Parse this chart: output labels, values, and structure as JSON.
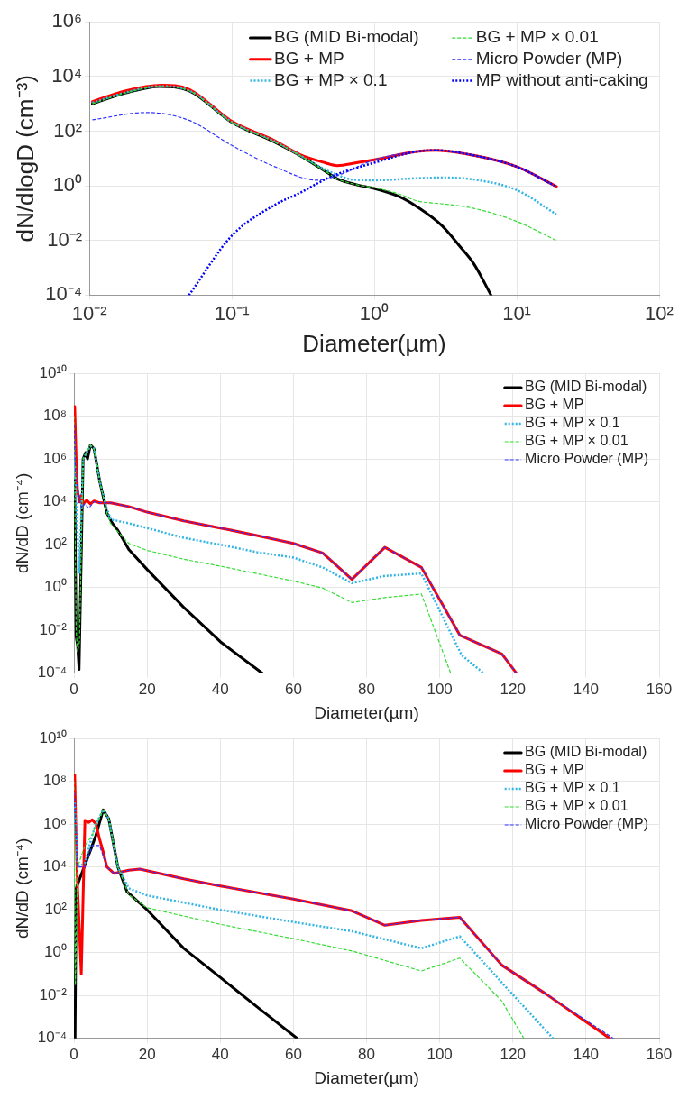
{
  "chart_data": [
    {
      "type": "line",
      "xlabel": "Diameter(µm)",
      "ylabel": "dN/dlogD (cm⁻³)",
      "log": "xy",
      "grid": true,
      "legend": "top right",
      "xlim": [
        0.01,
        100
      ],
      "xticks": [
        {
          "value": 0.01,
          "label": "10⁻²"
        },
        {
          "value": 0.1,
          "label": "10⁻¹"
        },
        {
          "value": 1,
          "label": "10⁰"
        },
        {
          "value": 10,
          "label": "10¹"
        },
        {
          "value": 100,
          "label": "10²"
        }
      ],
      "ylim": [
        0.0001,
        1000000
      ],
      "yticks": [
        {
          "value": 0.0001,
          "label": "10⁻⁴"
        },
        {
          "value": 0.01,
          "label": "10⁻²"
        },
        {
          "value": 1,
          "label": "10⁰"
        },
        {
          "value": 100,
          "label": "10²"
        },
        {
          "value": 10000,
          "label": "10⁴"
        },
        {
          "value": 1000000,
          "label": "10⁶"
        }
      ],
      "series": [
        {
          "name": "BG (MID Bi-modal)",
          "color": "#000000",
          "line_style": "solid",
          "x": [
            0.0105,
            0.018,
            0.031,
            0.05,
            0.1,
            0.2,
            0.3,
            0.45,
            0.55,
            0.75,
            1,
            1.5,
            2,
            3,
            4,
            5,
            6.6
          ],
          "values": [
            1000,
            2500,
            4300,
            3000,
            210,
            40,
            13,
            3.5,
            1.8,
            1.1,
            0.8,
            0.4,
            0.17,
            0.034,
            0.006,
            0.0014,
            0.0001
          ]
        },
        {
          "name": "BG + MP",
          "color": "#ff0000",
          "line_style": "solid",
          "x": [
            0.0105,
            0.018,
            0.032,
            0.05,
            0.1,
            0.2,
            0.3,
            0.45,
            0.55,
            0.75,
            1,
            2,
            2.7,
            5,
            10,
            19
          ],
          "values": [
            1200,
            3000,
            4800,
            3400,
            230,
            45,
            14,
            7,
            5.5,
            7,
            9,
            18,
            20,
            13,
            5,
            0.95
          ]
        },
        {
          "name": "BG + MP × 0.1",
          "color": "#33b5e5",
          "line_style": "dotted",
          "x": [
            0.0105,
            0.018,
            0.031,
            0.05,
            0.1,
            0.2,
            0.3,
            0.45,
            0.55,
            0.7,
            1,
            2,
            3,
            5,
            10,
            19
          ],
          "values": [
            1100,
            2600,
            4400,
            3100,
            215,
            42,
            13,
            4,
            2.5,
            1.7,
            1.6,
            1.9,
            2,
            1.7,
            0.7,
            0.09
          ]
        },
        {
          "name": "BG + MP × 0.01",
          "color": "#33dd33",
          "line_style": "dashed",
          "x": [
            0.0105,
            0.018,
            0.031,
            0.05,
            0.1,
            0.2,
            0.3,
            0.45,
            0.55,
            0.75,
            1,
            1.5,
            2,
            3,
            5,
            10,
            19
          ],
          "values": [
            1000,
            2500,
            4300,
            3000,
            210,
            40,
            13,
            3.5,
            1.8,
            1.1,
            0.85,
            0.5,
            0.28,
            0.22,
            0.15,
            0.05,
            0.01
          ]
        },
        {
          "name": "Micro Powder (MP)",
          "color": "#3333ff",
          "line_style": "dashed",
          "x": [
            0.0105,
            0.025,
            0.05,
            0.1,
            0.2,
            0.4,
            0.6,
            1,
            2,
            2.7,
            5,
            10,
            19
          ],
          "values": [
            260,
            480,
            250,
            30,
            5,
            1.6,
            2.8,
            9,
            18,
            20,
            13,
            5,
            0.9
          ]
        },
        {
          "name": "MP without anti-caking",
          "color": "#0000ff",
          "line_style": "dotted",
          "x": [
            0.05,
            0.1,
            0.2,
            0.3,
            0.5,
            1,
            2,
            2.7,
            5,
            10,
            19
          ],
          "values": [
            0.0001,
            0.015,
            0.2,
            0.55,
            2.2,
            7,
            18,
            20,
            13,
            5,
            0.95
          ]
        }
      ]
    },
    {
      "type": "line",
      "xlabel": "Diameter(µm)",
      "ylabel": "dN/dD (cm⁻⁴)",
      "log": "y",
      "grid": true,
      "legend": "top right",
      "xlim": [
        0,
        160
      ],
      "xticks": [
        0,
        20,
        40,
        60,
        80,
        100,
        120,
        140,
        160
      ],
      "ylim": [
        0.0001,
        10000000000
      ],
      "yticks": [
        {
          "value": 0.0001,
          "label": "10⁻⁴"
        },
        {
          "value": 0.01,
          "label": "10⁻²"
        },
        {
          "value": 1,
          "label": "10⁰"
        },
        {
          "value": 100,
          "label": "10²"
        },
        {
          "value": 10000,
          "label": "10⁴"
        },
        {
          "value": 1000000,
          "label": "10⁶"
        },
        {
          "value": 100000000,
          "label": "10⁸"
        },
        {
          "value": 10000000000,
          "label": "10¹⁰"
        }
      ],
      "series": [
        {
          "name": "BG (MID Bi-modal)",
          "color": "#000000",
          "line_style": "solid",
          "x": [
            0.2,
            0.6,
            1,
            1.4,
            2.5,
            3.2,
            3.7,
            4.5,
            5.5,
            7,
            9,
            10.5,
            12,
            15,
            20,
            30,
            40,
            51.5
          ],
          "values": [
            100000,
            0.005,
            0.002,
            0.00015,
            1000000,
            2000000,
            1000000,
            4500000,
            3000000,
            100000,
            3000,
            1000,
            470,
            60,
            7,
            0.12,
            0.003,
            0.0001
          ]
        },
        {
          "name": "BG + MP",
          "color": "#ff0000",
          "line_style": "solid",
          "x": [
            0.2,
            0.6,
            1,
            1.5,
            2,
            2.5,
            3.5,
            4.5,
            5.5,
            7,
            10,
            15,
            20,
            30,
            40,
            50,
            60,
            68,
            76,
            85,
            95,
            105.5,
            117,
            121
          ],
          "values": [
            280000000,
            1000000,
            30000,
            10000,
            20000,
            8000,
            12000,
            8000,
            11000,
            9000,
            9000,
            6000,
            3300,
            1300,
            600,
            270,
            115,
            41,
            2.4,
            75,
            8.7,
            0.006,
            0.0008,
            0.0001
          ]
        },
        {
          "name": "BG + MP × 0.1",
          "color": "#33b5e5",
          "line_style": "dotted",
          "x": [
            0,
            0.6,
            1.5,
            2.5,
            3.5,
            4.5,
            5.5,
            7,
            9,
            10,
            15,
            20,
            30,
            40,
            50,
            60,
            68,
            76,
            85,
            95,
            106,
            112
          ],
          "values": [
            10000000,
            10000,
            5,
            1000000,
            2000000,
            4000000,
            3000000,
            100000,
            5000,
            1500,
            1000,
            600,
            210,
            100,
            45,
            25,
            8.7,
            1.6,
            3.5,
            4.5,
            0.0007,
            0.0001
          ]
        },
        {
          "name": "BG + MP × 0.01",
          "color": "#33dd33",
          "line_style": "dashed",
          "x": [
            0,
            0.6,
            1,
            1.5,
            2.5,
            3.5,
            4.5,
            5.5,
            7,
            9,
            10,
            12,
            15,
            20,
            30,
            40,
            50,
            60,
            68,
            76,
            85,
            95,
            103
          ],
          "values": [
            100000000,
            0.01,
            0.001,
            0.003,
            1000000,
            2000000,
            4500000,
            3000000,
            100000,
            3000,
            1000,
            400,
            115,
            54,
            21,
            10,
            4.5,
            2,
            0.95,
            0.2,
            0.34,
            0.5,
            0.0001
          ]
        },
        {
          "name": "Micro Powder (MP)",
          "color": "#3333ff",
          "line_style": "dashed",
          "x": [
            0,
            0.5,
            1,
            2,
            3,
            4,
            5.5,
            7,
            10,
            15,
            20,
            30,
            40,
            50,
            60,
            68,
            76,
            85,
            95,
            105.5,
            117,
            121
          ],
          "values": [
            40000000,
            100000,
            50000,
            5000,
            8000,
            5000,
            10000,
            9000,
            9000,
            6000,
            3300,
            1300,
            600,
            270,
            115,
            41,
            2.4,
            75,
            8.7,
            0.006,
            0.0008,
            0.0001
          ]
        }
      ]
    },
    {
      "type": "line",
      "xlabel": "Diameter(µm)",
      "ylabel": "dN/dD (cm⁻⁴)",
      "log": "y",
      "grid": true,
      "legend": "top right",
      "xlim": [
        0,
        160
      ],
      "xticks": [
        0,
        20,
        40,
        60,
        80,
        100,
        120,
        140,
        160
      ],
      "ylim": [
        0.0001,
        10000000000
      ],
      "yticks": [
        {
          "value": 0.0001,
          "label": "10⁻⁴"
        },
        {
          "value": 0.01,
          "label": "10⁻²"
        },
        {
          "value": 1,
          "label": "10⁰"
        },
        {
          "value": 100,
          "label": "10²"
        },
        {
          "value": 10000,
          "label": "10⁴"
        },
        {
          "value": 1000000,
          "label": "10⁶"
        },
        {
          "value": 100000000,
          "label": "10⁸"
        },
        {
          "value": 10000000000,
          "label": "10¹⁰"
        }
      ],
      "series": [
        {
          "name": "BG (MID Bi-modal)",
          "color": "#000000",
          "line_style": "solid",
          "x": [
            0.3,
            0.6,
            5,
            6,
            8,
            9.5,
            12,
            14.5,
            20,
            30,
            40,
            50,
            61
          ],
          "values": [
            0.0001,
            1000,
            100000,
            300000,
            4600000,
            1800000,
            10000,
            700,
            100,
            1.6,
            0.07,
            0.003,
            0.0001
          ]
        },
        {
          "name": "BG + MP",
          "color": "#ff0000",
          "line_style": "solid",
          "x": [
            0.2,
            0.5,
            1,
            2,
            3,
            4,
            5,
            6,
            7,
            8,
            9,
            11,
            15,
            18,
            30,
            40,
            60,
            76,
            85,
            95,
            105.5,
            117,
            129,
            146.5
          ],
          "values": [
            200000000,
            1000000,
            1000,
            0.1,
            1500000,
            1200000,
            1600000,
            1000000,
            200000,
            50000,
            10000,
            5000,
            7000,
            8000,
            2800,
            1300,
            320,
            90,
            19,
            32,
            45,
            0.26,
            0.012,
            0.0001
          ]
        },
        {
          "name": "BG + MP × 0.1",
          "color": "#33b5e5",
          "line_style": "dotted",
          "x": [
            0.2,
            1,
            3,
            5,
            6,
            8,
            9.5,
            12,
            15,
            20,
            40,
            60,
            76,
            95,
            105.5,
            117,
            131
          ],
          "values": [
            10000000,
            10000,
            15000,
            300000,
            1000000,
            4600000,
            1800000,
            10000,
            1000,
            470,
            100,
            27,
            10,
            1.6,
            5.8,
            0.04,
            0.0001
          ]
        },
        {
          "name": "BG + MP × 0.01",
          "color": "#33dd33",
          "line_style": "dashed",
          "x": [
            0,
            0.4,
            1,
            3,
            5,
            6,
            8,
            9.5,
            12,
            15,
            20,
            40,
            60,
            76,
            95,
            105.5,
            117,
            123
          ],
          "values": [
            100000000,
            0.03,
            10000,
            100000,
            300000,
            1000000,
            4600000,
            1800000,
            10000,
            500,
            125,
            21,
            4.5,
            1.2,
            0.14,
            0.56,
            0.0055,
            0.0001
          ]
        },
        {
          "name": "Micro Powder (MP)",
          "color": "#3333ff",
          "line_style": "dashed",
          "x": [
            0,
            1,
            3,
            5,
            7,
            9,
            11,
            15,
            18,
            30,
            40,
            60,
            76,
            85,
            95,
            105.5,
            117,
            129,
            147.5
          ],
          "values": [
            30000000,
            10000,
            10000,
            100000,
            100000,
            10000,
            5000,
            7000,
            8000,
            2800,
            1300,
            320,
            90,
            19,
            32,
            45,
            0.26,
            0.012,
            0.0001
          ]
        }
      ]
    }
  ]
}
